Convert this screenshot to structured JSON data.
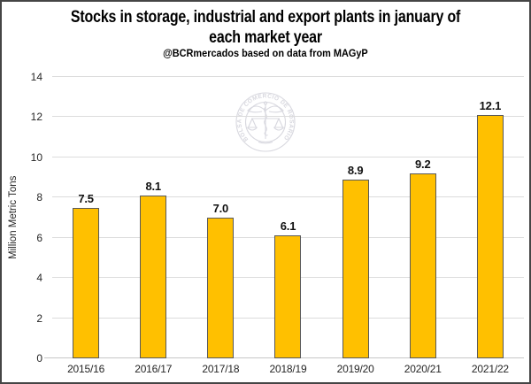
{
  "header": {
    "title_lines": [
      "Stocks in storage, industrial and export plants in january of",
      "each market year"
    ],
    "subtitle": "@BCRmercados based on data from MAGyP"
  },
  "watermark": {
    "text": "BOLSA DE COMERCIO DE ROSARIO",
    "color": "#d8d8df"
  },
  "chart_data": {
    "type": "bar",
    "title": "Stocks in storage, industrial and export plants in january of each market year",
    "subtitle": "@BCRmercados based on data from MAGyP",
    "categories": [
      "2015/16",
      "2016/17",
      "2017/18",
      "2018/19",
      "2019/20",
      "2020/21",
      "2021/22"
    ],
    "values": [
      7.5,
      8.1,
      7.0,
      6.1,
      8.9,
      9.2,
      12.1
    ],
    "data_labels": [
      "7.5",
      "8.1",
      "7.0",
      "6.1",
      "8.9",
      "9.2",
      "12.1"
    ],
    "xlabel": "",
    "ylabel": "Million Metric Tons",
    "ylim": [
      0,
      14
    ],
    "yticks": [
      0,
      2,
      4,
      6,
      8,
      10,
      12,
      14
    ],
    "grid": true,
    "legend": "none",
    "bar_color": "#FFC000",
    "bar_border_color": "#595959",
    "gridline_color": "#dcdcdc"
  }
}
